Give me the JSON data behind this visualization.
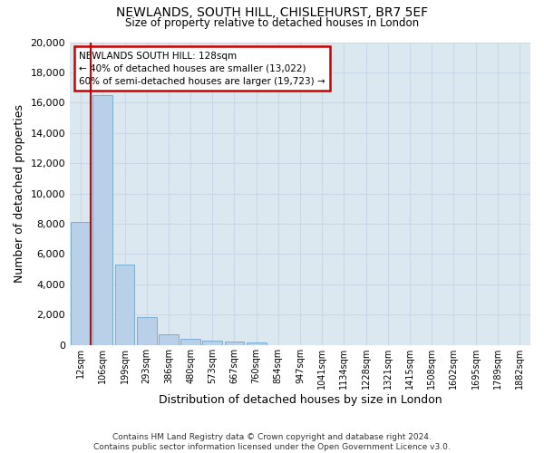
{
  "title1": "NEWLANDS, SOUTH HILL, CHISLEHURST, BR7 5EF",
  "title2": "Size of property relative to detached houses in London",
  "xlabel": "Distribution of detached houses by size in London",
  "ylabel": "Number of detached properties",
  "categories": [
    "12sqm",
    "106sqm",
    "199sqm",
    "293sqm",
    "386sqm",
    "480sqm",
    "573sqm",
    "667sqm",
    "760sqm",
    "854sqm",
    "947sqm",
    "1041sqm",
    "1134sqm",
    "1228sqm",
    "1321sqm",
    "1415sqm",
    "1508sqm",
    "1602sqm",
    "1695sqm",
    "1789sqm",
    "1882sqm"
  ],
  "values": [
    8100,
    16500,
    5300,
    1850,
    700,
    380,
    270,
    210,
    180,
    0,
    0,
    0,
    0,
    0,
    0,
    0,
    0,
    0,
    0,
    0,
    0
  ],
  "bar_color": "#b8d0e8",
  "bar_edge_color": "#7aadd4",
  "annotation_title": "NEWLANDS SOUTH HILL: 128sqm",
  "annotation_line1": "← 40% of detached houses are smaller (13,022)",
  "annotation_line2": "60% of semi-detached houses are larger (19,723) →",
  "annotation_box_color": "#ffffff",
  "annotation_box_edge": "#cc0000",
  "marker_color": "#cc0000",
  "ylim": [
    0,
    20000
  ],
  "yticks": [
    0,
    2000,
    4000,
    6000,
    8000,
    10000,
    12000,
    14000,
    16000,
    18000,
    20000
  ],
  "grid_color": "#c8d8e8",
  "bg_color": "#dce8f0",
  "footer1": "Contains HM Land Registry data © Crown copyright and database right 2024.",
  "footer2": "Contains public sector information licensed under the Open Government Licence v3.0."
}
